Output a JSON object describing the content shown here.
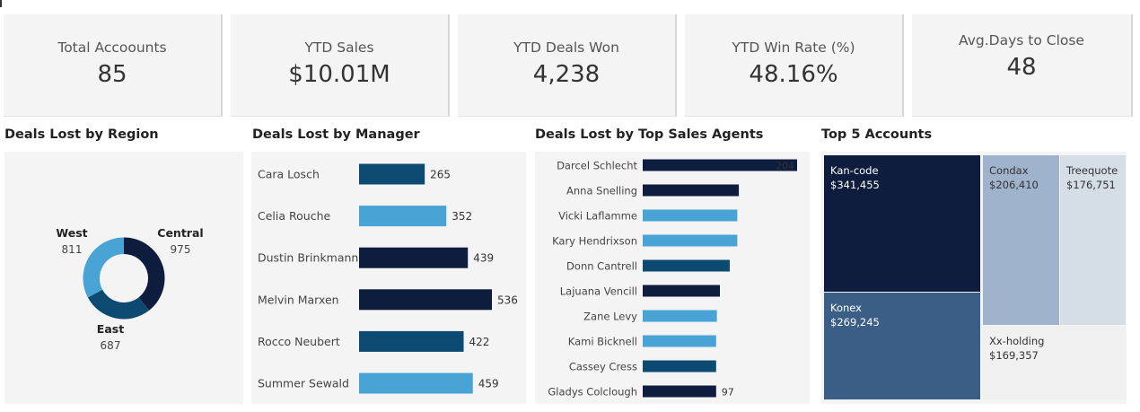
{
  "kpis": [
    {
      "label": "Total Accoounts",
      "value": "85"
    },
    {
      "label": "YTD Sales",
      "value": "$10.01M"
    },
    {
      "label": "YTD Deals Won",
      "value": "4,238"
    },
    {
      "label": "YTD Win Rate (%)",
      "value": "48.16%"
    },
    {
      "label": "Avg.Days to Close",
      "value": "48"
    }
  ],
  "chart_data": [
    {
      "type": "pie",
      "title": "Deals Lost by Region",
      "categories": [
        "Central",
        "East",
        "West"
      ],
      "values": [
        975,
        687,
        811
      ],
      "colors": [
        "#0e1d3e",
        "#0c4a72",
        "#4aa3d5"
      ]
    },
    {
      "type": "bar",
      "title": "Deals Lost by Manager",
      "categories": [
        "Cara Losch",
        "Celia Rouche",
        "Dustin Brinkmann",
        "Melvin Marxen",
        "Rocco Neubert",
        "Summer Sewald"
      ],
      "values": [
        265,
        352,
        439,
        536,
        422,
        459
      ],
      "colors": [
        "#0c4a72",
        "#4aa3d5",
        "#0e1d3e",
        "#0e1d3e",
        "#0c4a72",
        "#4aa3d5"
      ]
    },
    {
      "type": "bar",
      "title": "Deals Lost by Top Sales Agents",
      "categories": [
        "Darcel Schlecht",
        "Anna Snelling",
        "Vicki Laflamme",
        "Kary Hendrixson",
        "Donn Cantrell",
        "Lajuana Vencill",
        "Zane Levy",
        "Kami Bicknell",
        "Cassey Cress",
        "Gladys Colclough"
      ],
      "values": [
        204,
        127,
        125,
        125,
        115,
        102,
        98,
        97,
        97,
        97
      ],
      "labels": [
        "204",
        "",
        "",
        "",
        "",
        "",
        "",
        "",
        "",
        "97"
      ],
      "colors": [
        "#0e1d3e",
        "#0e1d3e",
        "#4aa3d5",
        "#4aa3d5",
        "#0c4a72",
        "#0e1d3e",
        "#4aa3d5",
        "#4aa3d5",
        "#0c4a72",
        "#0e1d3e"
      ]
    },
    {
      "type": "treemap",
      "title": "Top 5 Accounts",
      "categories": [
        "Kan-code",
        "Konex",
        "Condax",
        "Treequote",
        "Xx-holding"
      ],
      "values": [
        341455,
        269245,
        206410,
        176751,
        169357
      ],
      "value_labels": [
        "$341,455",
        "$269,245",
        "$206,410",
        "$176,751",
        "$169,357"
      ],
      "colors": [
        "#0e1d3e",
        "#3a5e86",
        "#9fb3cc",
        "#d5dde7",
        "#f0f0f0"
      ],
      "text_colors": [
        "#ffffff",
        "#ffffff",
        "#333333",
        "#333333",
        "#333333"
      ]
    }
  ]
}
